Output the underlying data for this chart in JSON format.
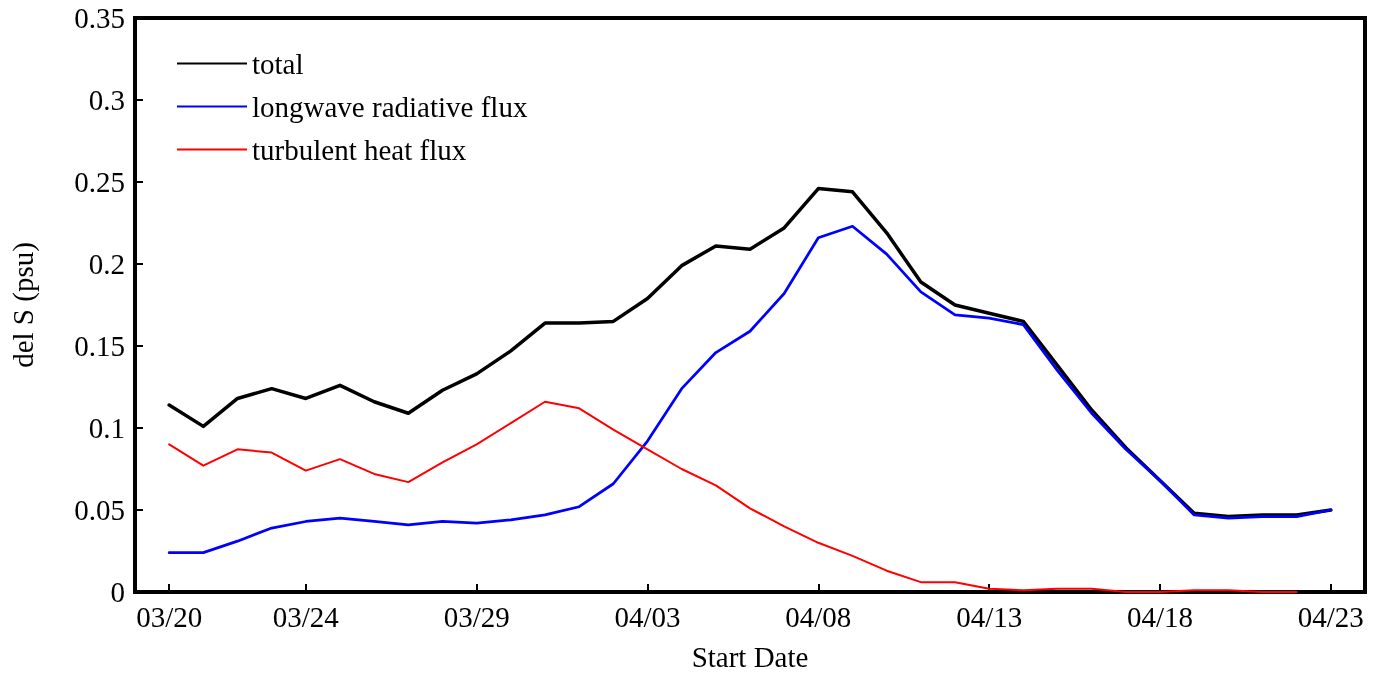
{
  "chart_data": {
    "type": "line",
    "xlabel": "Start Date",
    "ylabel": "del S (psu)",
    "x": [
      "--03-20",
      "--03-21",
      "--03-22",
      "--03-23",
      "--03-24",
      "--03-25",
      "--03-26",
      "--03-27",
      "--03-28",
      "--03-29",
      "--03-30",
      "--03-31",
      "--04-01",
      "--04-02",
      "--04-03",
      "--04-04",
      "--04-05",
      "--04-06",
      "--04-07",
      "--04-08",
      "--04-09",
      "--04-10",
      "--04-11",
      "--04-12",
      "--04-13",
      "--04-14",
      "--04-15",
      "--04-16",
      "--04-17",
      "--04-18",
      "--04-19",
      "--04-20",
      "--04-21",
      "--04-22",
      "--04-23"
    ],
    "series": [
      {
        "name": "total",
        "color": "#000000",
        "values": [
          0.114,
          0.101,
          0.118,
          0.124,
          0.118,
          0.126,
          0.116,
          0.109,
          0.123,
          0.133,
          0.147,
          0.164,
          0.164,
          0.165,
          0.179,
          0.199,
          0.211,
          0.209,
          0.222,
          0.246,
          0.244,
          0.219,
          0.189,
          0.175,
          0.17,
          0.165,
          0.138,
          0.111,
          0.088,
          0.068,
          0.048,
          0.046,
          0.047,
          0.047,
          0.05
        ]
      },
      {
        "name": "longwave radiative flux",
        "color": "#0000ff",
        "values": [
          0.024,
          0.024,
          0.031,
          0.039,
          0.043,
          0.045,
          0.043,
          0.041,
          0.043,
          0.042,
          0.044,
          0.047,
          0.052,
          0.066,
          0.092,
          0.124,
          0.146,
          0.159,
          0.182,
          0.216,
          0.223,
          0.206,
          0.183,
          0.169,
          0.167,
          0.163,
          0.135,
          0.109,
          0.087,
          0.068,
          0.047,
          0.045,
          0.046,
          0.046,
          0.05
        ]
      },
      {
        "name": "turbulent heat flux",
        "color": "#ff0000",
        "values": [
          0.09,
          0.077,
          0.087,
          0.085,
          0.074,
          0.081,
          0.072,
          0.067,
          0.079,
          0.09,
          0.103,
          0.116,
          0.112,
          0.099,
          0.087,
          0.075,
          0.065,
          0.051,
          0.04,
          0.03,
          0.022,
          0.013,
          0.006,
          0.006,
          0.002,
          0.001,
          0.002,
          0.002,
          0.0,
          0.0,
          0.001,
          0.001,
          0.0,
          0.0,
          null
        ]
      }
    ],
    "xlim": [
      "--03-19",
      "--04-24"
    ],
    "xticks": [
      {
        "value": "--03-20",
        "label": "03/20"
      },
      {
        "value": "--03-24",
        "label": "03/24"
      },
      {
        "value": "--03-29",
        "label": "03/29"
      },
      {
        "value": "--04-03",
        "label": "04/03"
      },
      {
        "value": "--04-08",
        "label": "04/08"
      },
      {
        "value": "--04-13",
        "label": "04/13"
      },
      {
        "value": "--04-18",
        "label": "04/18"
      },
      {
        "value": "--04-23",
        "label": "04/23"
      }
    ],
    "ylim": [
      0,
      0.35
    ],
    "yticks": [
      0,
      0.05,
      0.1,
      0.15,
      0.2,
      0.25,
      0.3,
      0.35
    ],
    "grid": false,
    "legend": "top left",
    "marker": "none",
    "line_style": "solid"
  }
}
